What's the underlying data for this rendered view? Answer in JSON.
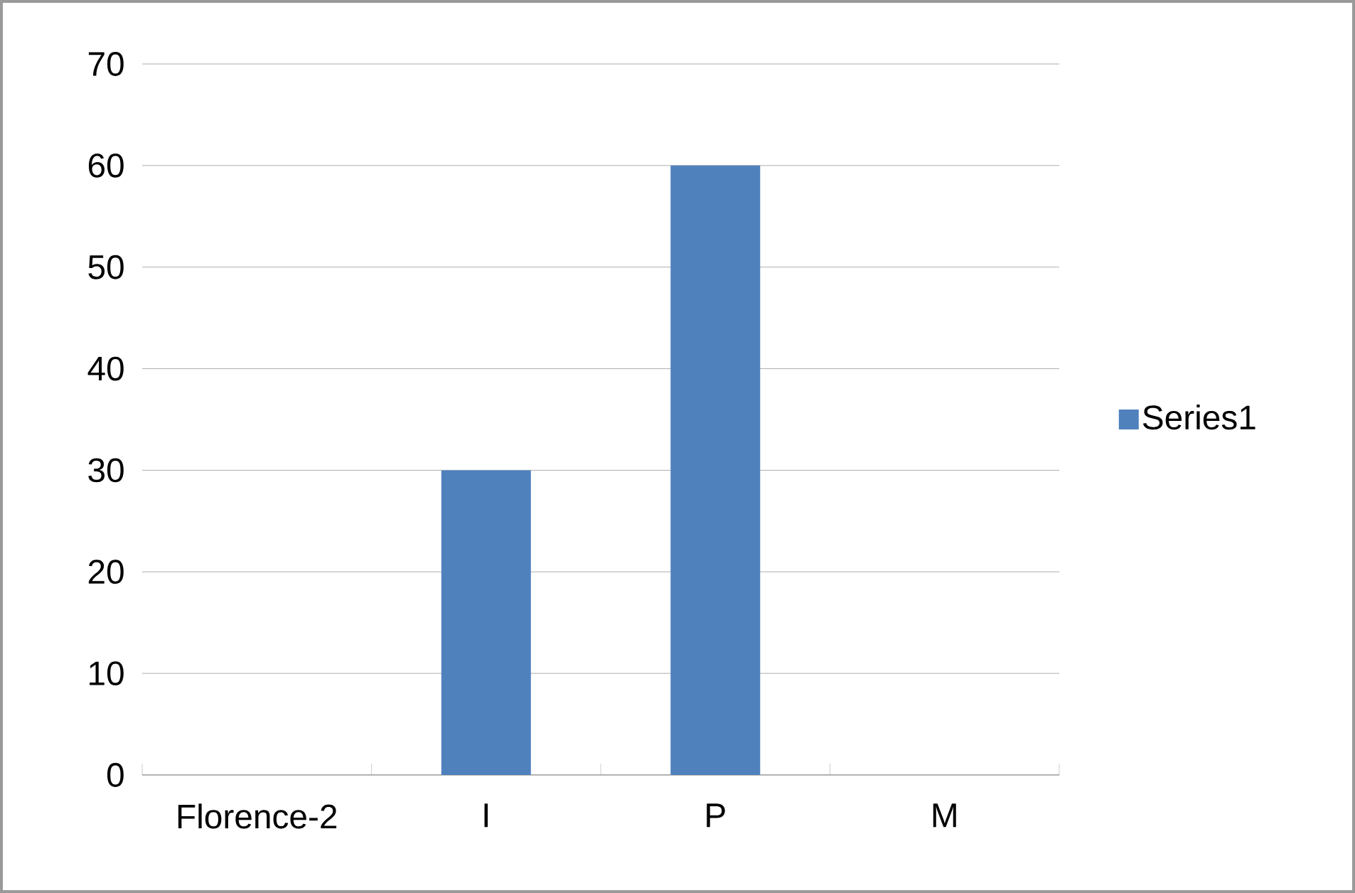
{
  "chart_data": {
    "type": "bar",
    "categories": [
      "Florence-2",
      "I",
      "P",
      "M"
    ],
    "series": [
      {
        "name": "Series1",
        "color": "#4f81bd",
        "values": [
          0,
          30,
          60,
          0
        ]
      }
    ],
    "ylim": [
      0,
      70
    ],
    "yticks": [
      0,
      10,
      20,
      30,
      40,
      50,
      60,
      70
    ],
    "grid": "y",
    "legend": "right"
  }
}
